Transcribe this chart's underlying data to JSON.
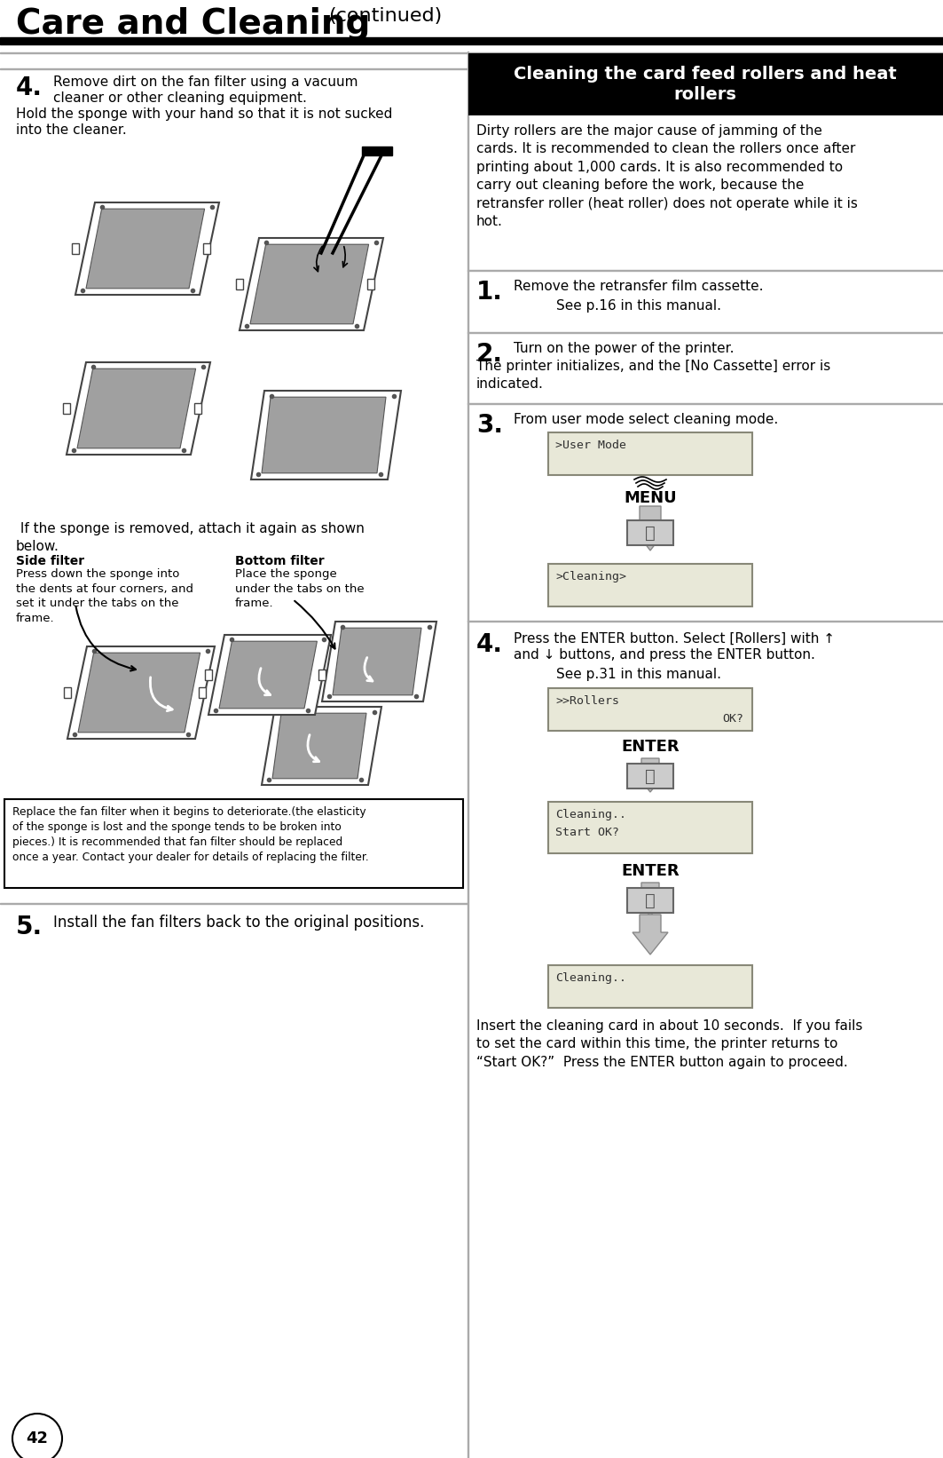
{
  "title_large": "Care and Cleaning",
  "title_small": "(continued)",
  "page_number": "42",
  "bg_color": "#ffffff",
  "right_header_bg": "#000000",
  "right_header_text": "Cleaning the card feed rollers and heat\nrollers",
  "right_header_text_color": "#ffffff",
  "step4_num": "4.",
  "step4_text1": "Remove dirt on the fan filter using a vacuum\n      cleaner or other cleaning equipment.",
  "step4_text2": "Hold the sponge with your hand so that it is not sucked\ninto the cleaner.",
  "sponge_note": " If the sponge is removed, attach it again as shown\nbelow.",
  "side_filter_title": "Side filter",
  "side_filter_text": "Press down the sponge into\nthe dents at four corners, and\nset it under the tabs on the\nframe.",
  "bottom_filter_title": "Bottom filter",
  "bottom_filter_text": "Place the sponge\nunder the tabs on the\nframe.",
  "warning_box_text": "Replace the fan filter when it begins to deteriorate.(the elasticity\nof the sponge is lost and the sponge tends to be broken into\npieces.) It is recommended that fan filter should be replaced\nonce a year. Contact your dealer for details of replacing the filter.",
  "step5_num": "5.",
  "step5_text": "Install the fan filters back to the original positions.",
  "right_col_text1": "Dirty rollers are the major cause of jamming of the\ncards. It is recommended to clean the rollers once after\nprinting about 1,000 cards. It is also recommended to\ncarry out cleaning before the work, because the\nretransfer roller (heat roller) does not operate while it is\nhot.",
  "step1_num": "1.",
  "step1_text1": "Remove the retransfer film cassette.",
  "step1_text2": "See p.16 in this manual.",
  "step2_num": "2.",
  "step2_text1": "Turn on the power of the printer.",
  "step2_text2": "The printer initializes, and the [No Cassette] error is\nindicated.",
  "step3_num": "3.",
  "step3_text": "From user mode select cleaning mode.",
  "step4r_num": "4.",
  "step4r_text1": "Press the ENTER button. Select [Rollers] with ↑",
  "step4r_text2": "and ↓ buttons, and press the ENTER button.",
  "step4r_text3": "See p.31 in this manual.",
  "insert_text": "Insert the cleaning card in about 10 seconds.  If you fails\nto set the card within this time, the printer returns to\n“Start OK?”  Press the ENTER button again to proceed.",
  "lcd1_text": ">User Mode",
  "lcd2_text": ">Cleaning>",
  "lcd3_line1": ">>Rollers",
  "lcd3_line2": "OK?",
  "lcd4_text": "Cleaning..\nStart OK?",
  "lcd5_text": "Cleaning..",
  "menu_text": "MENU",
  "enter_text": "ENTER",
  "lcd_bg": "#e8e8d8",
  "lcd_border": "#888878",
  "divider_color": "#999999",
  "arrow_color": "#bbbbbb",
  "button_color": "#cccccc"
}
